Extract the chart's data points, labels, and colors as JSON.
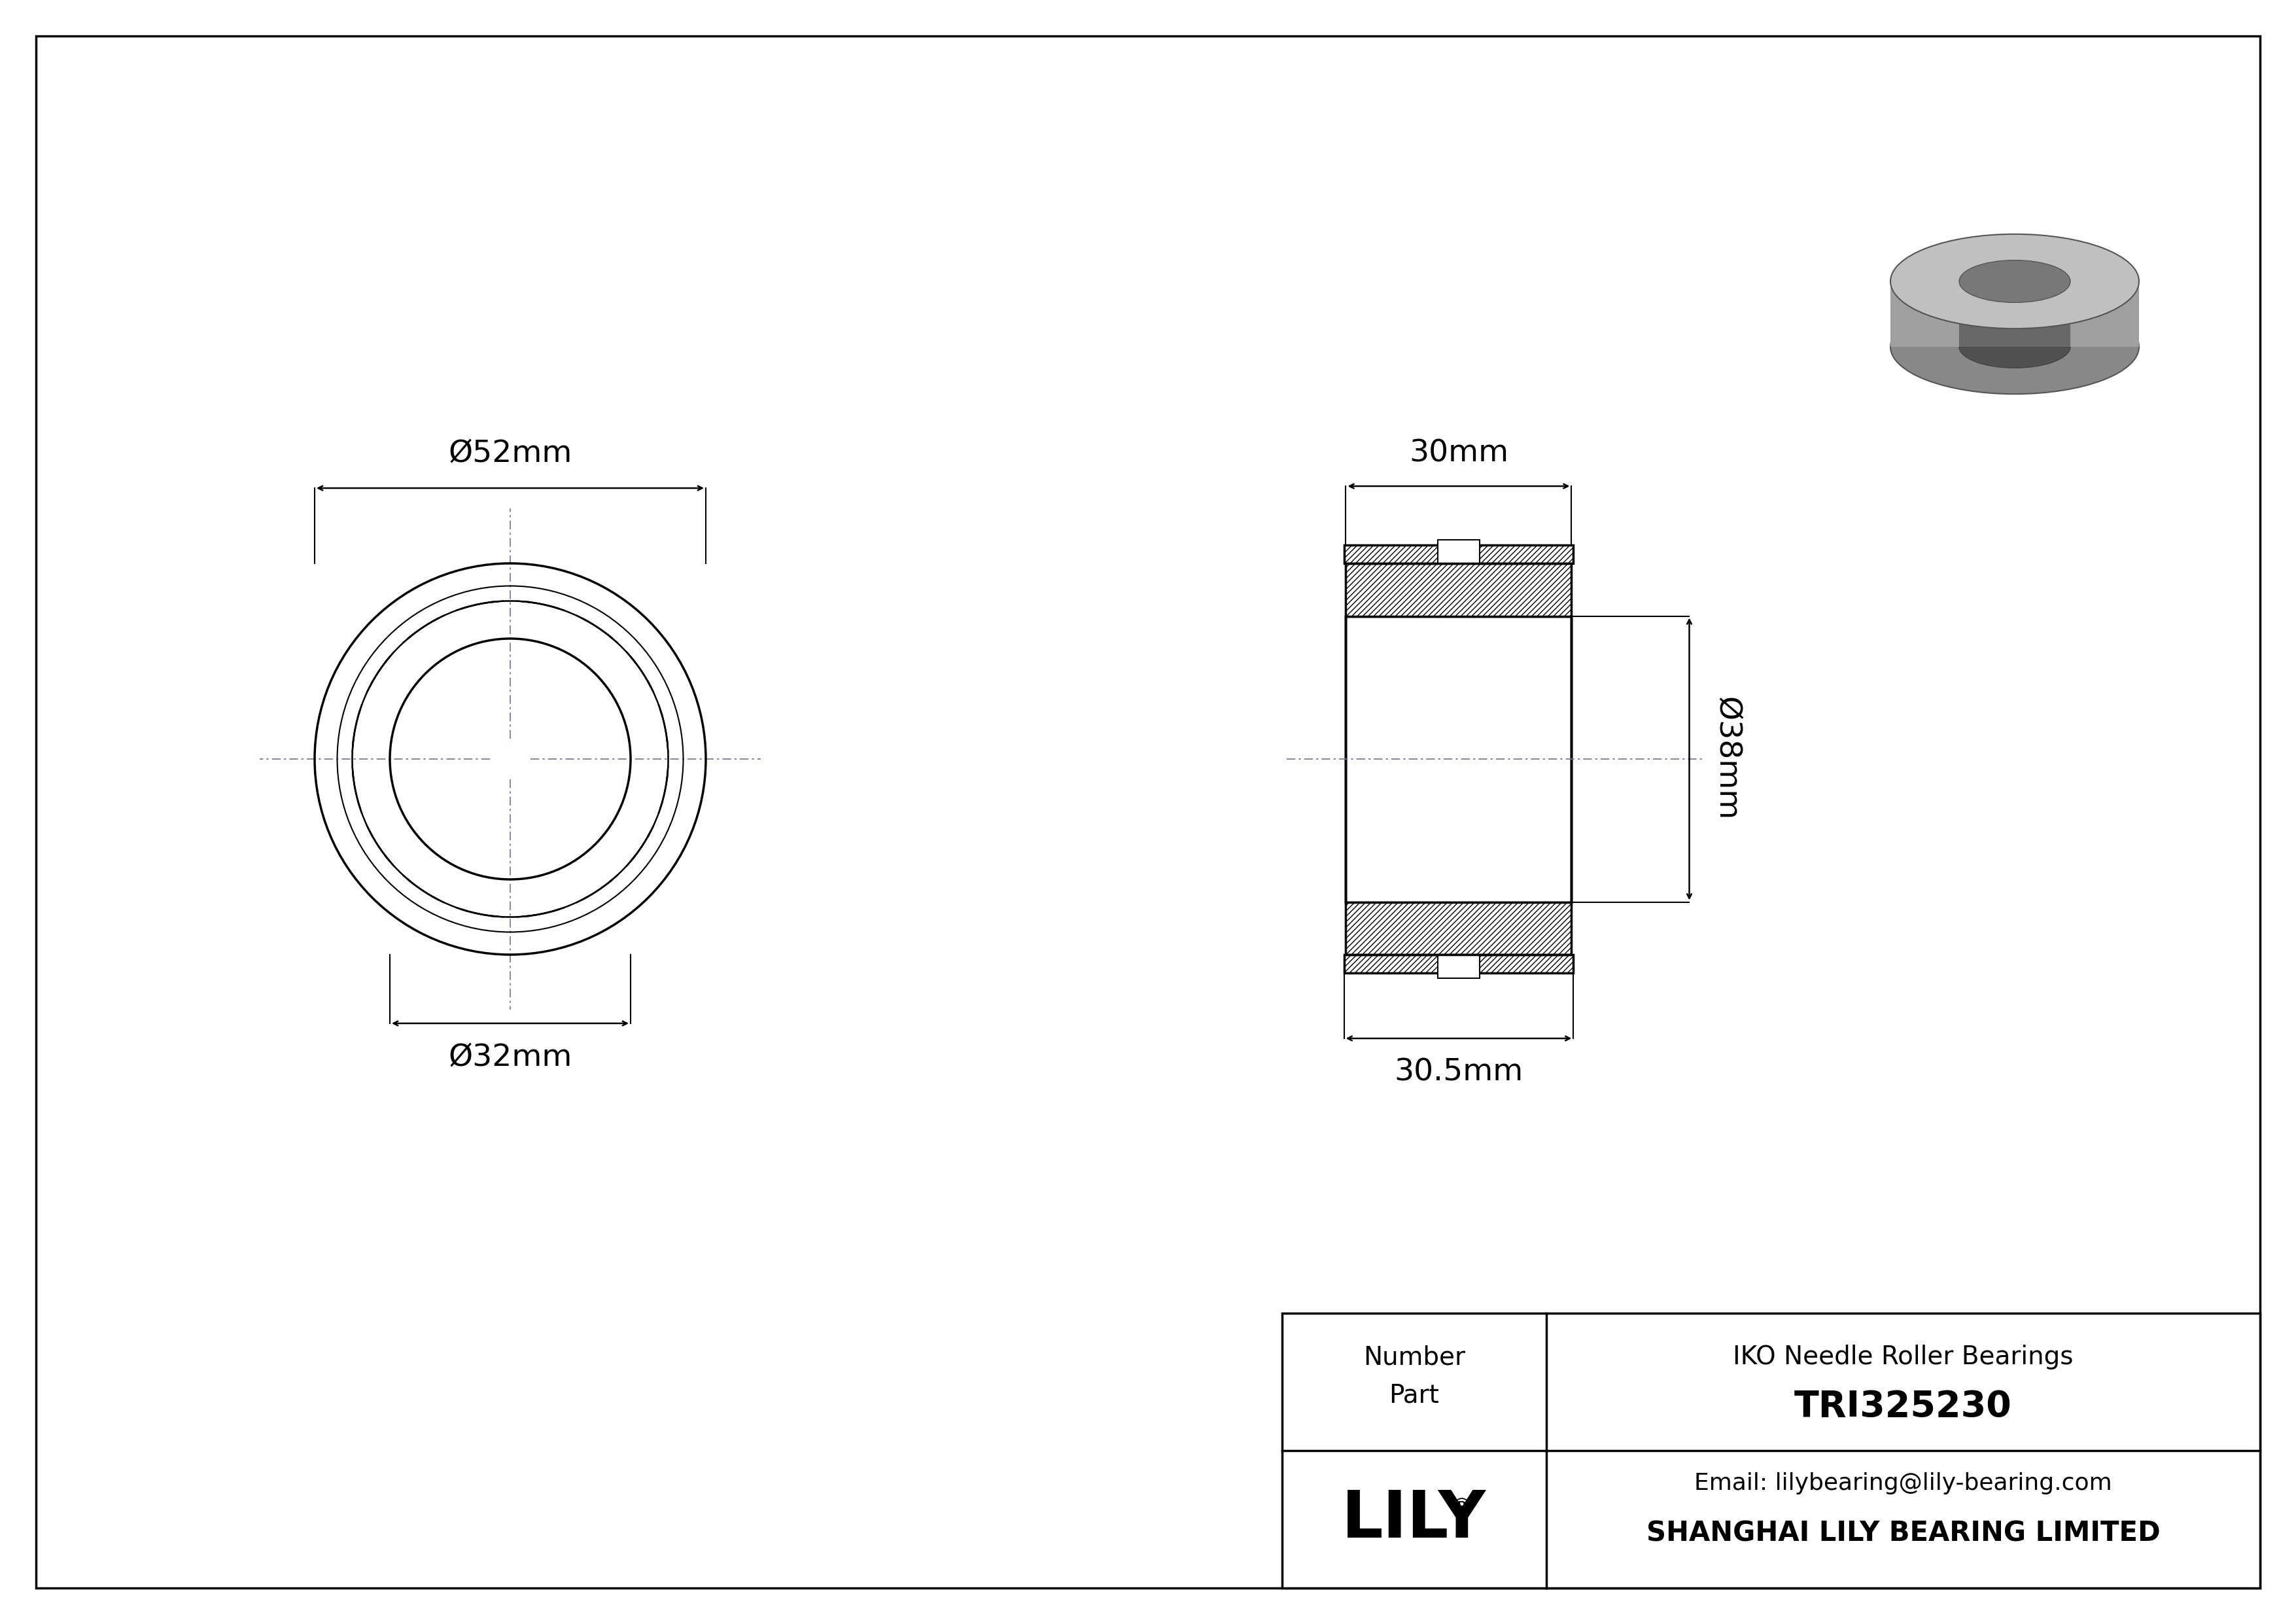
{
  "bg_color": "#ffffff",
  "line_color": "#000000",
  "dim_52": "Ø52mm",
  "dim_32": "Ø32mm",
  "dim_30": "30mm",
  "dim_38": "Ø38mm",
  "dim_305": "30.5mm",
  "title_company": "SHANGHAI LILY BEARING LIMITED",
  "title_email": "Email: lilybearing@lily-bearing.com",
  "part_number": "TRI325230",
  "part_type": "IKO Needle Roller Bearings",
  "logo_text": "LILY"
}
